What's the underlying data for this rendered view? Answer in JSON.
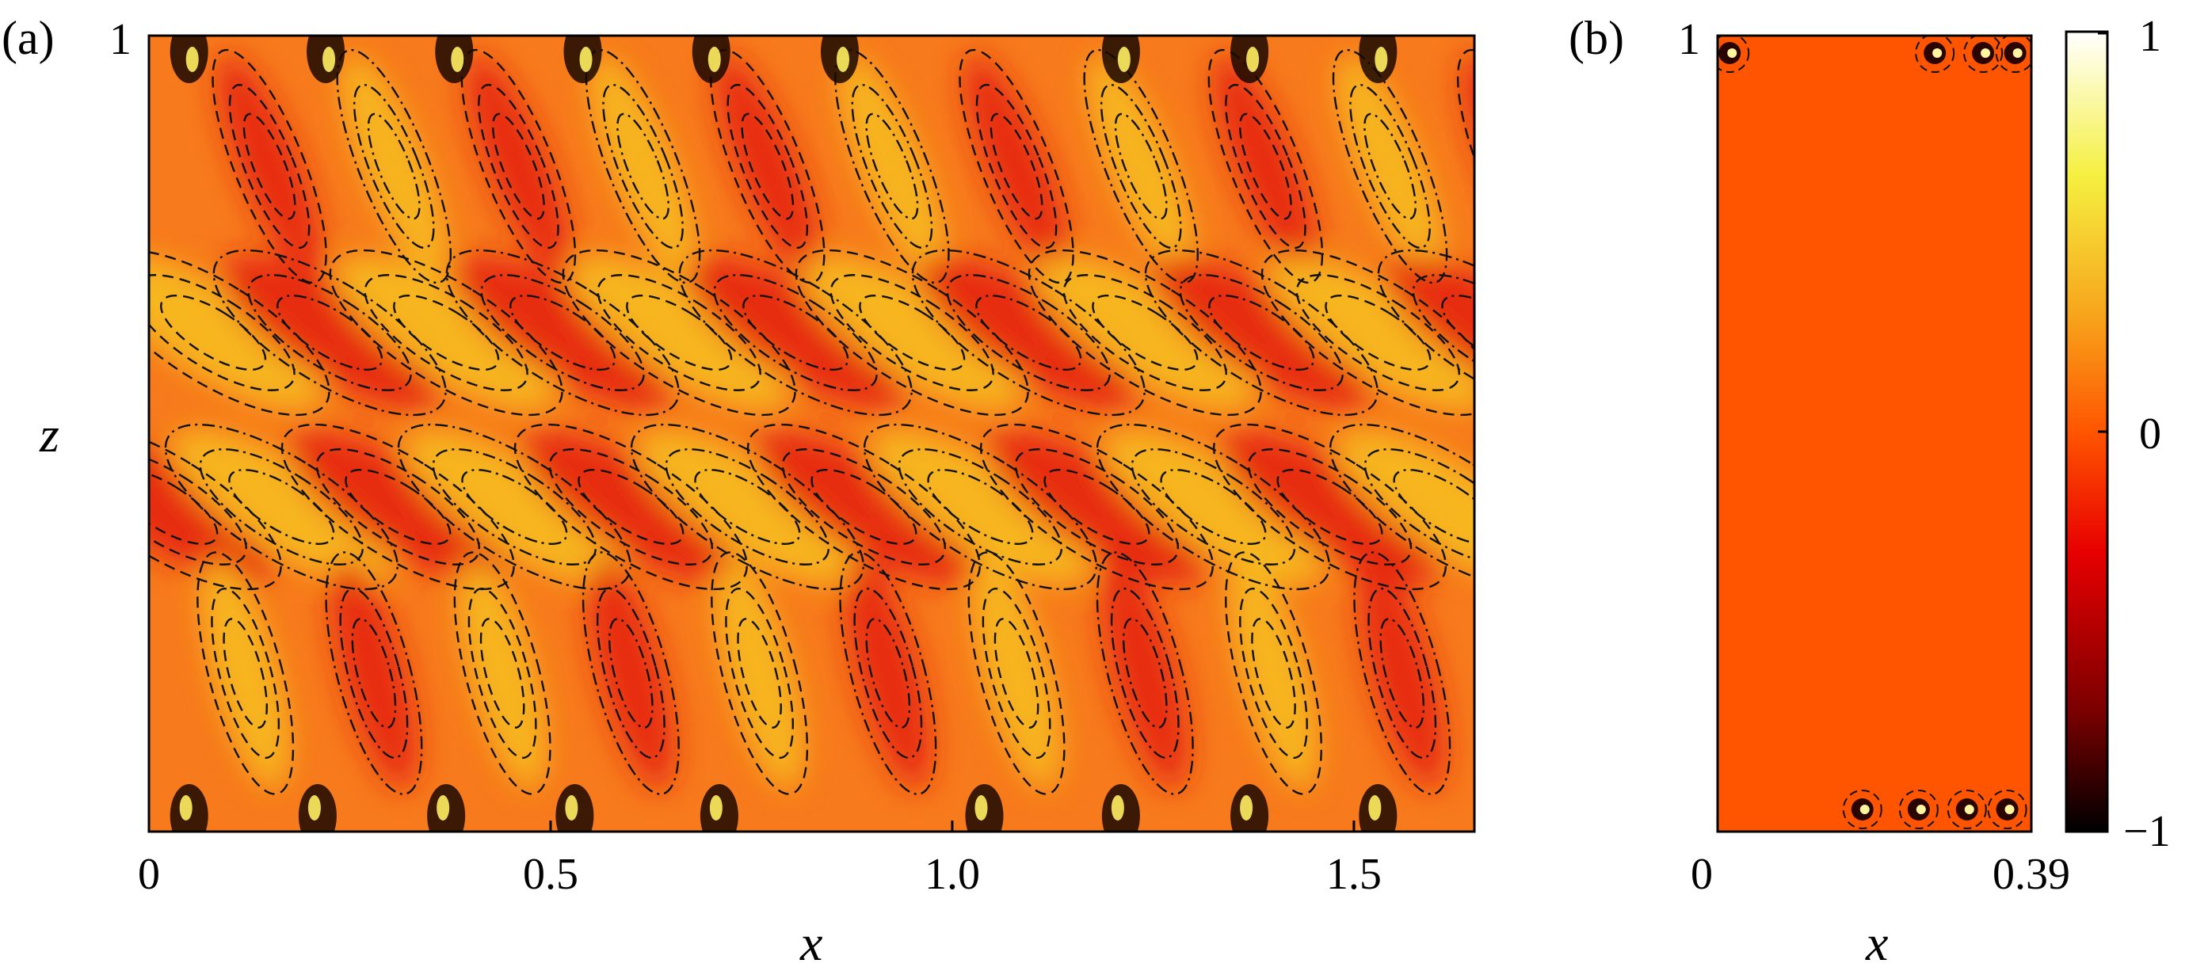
{
  "chart_data": [
    {
      "type": "heatmap",
      "panel_label": "(a)",
      "xlabel": "x",
      "ylabel": "z",
      "xlim": [
        0,
        1.65
      ],
      "ylim": [
        0,
        1
      ],
      "xticks": [
        "0",
        "0.5",
        "1.0",
        "1.5"
      ],
      "yticks": [
        "1"
      ],
      "pattern": "oblique travelling-wave bands with contour lines, wall plumes at top and bottom"
    },
    {
      "type": "heatmap",
      "panel_label": "(b)",
      "xlabel": "x",
      "ylabel": "",
      "xlim": [
        0,
        0.39
      ],
      "ylim": [
        0,
        1
      ],
      "xticks": [
        "0",
        "0.39"
      ],
      "yticks": [
        "1"
      ],
      "pattern": "nearly uniform field with small vortices near top and bottom walls"
    }
  ],
  "colorbar": {
    "ticks": [
      "1",
      "0",
      "−1"
    ],
    "range": [
      -1,
      1
    ],
    "colors": [
      "#ffffff",
      "#f5f040",
      "#f7a21a",
      "#ff5500",
      "#e80000",
      "#7a0000",
      "#000000"
    ]
  },
  "colors": {
    "background_field": "#f77a1c",
    "panel_b_field": "#ff5500",
    "contour": "#000000"
  }
}
